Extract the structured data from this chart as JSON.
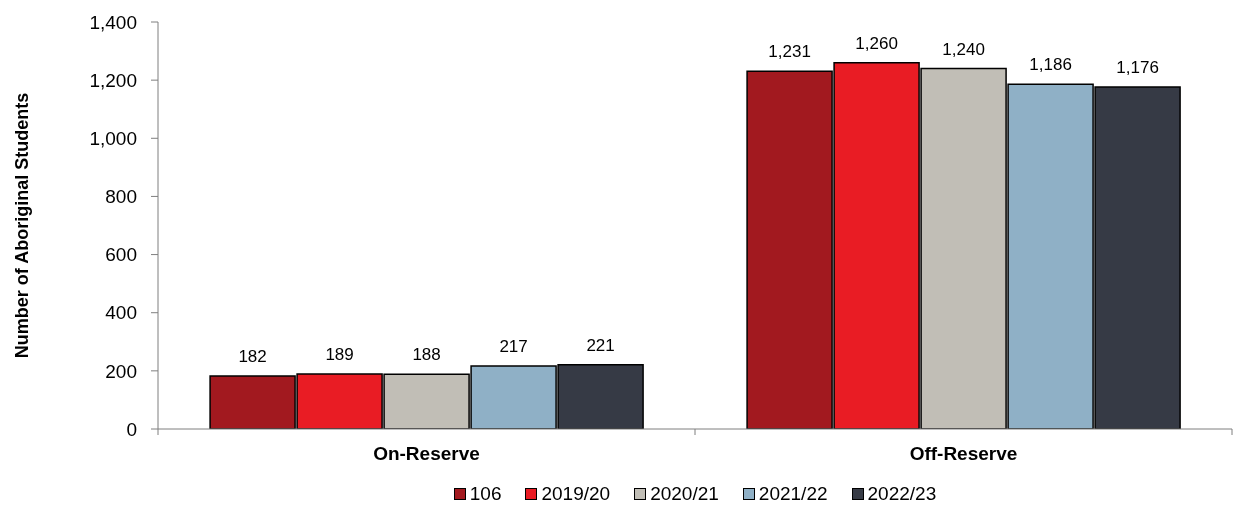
{
  "chart_data": {
    "type": "bar",
    "ylabel": "Number of Aboriginal Students",
    "categories": [
      "On-Reserve",
      "Off-Reserve"
    ],
    "series": [
      {
        "name": "106",
        "color": "#a2191f",
        "values": [
          182,
          1231
        ],
        "value_labels": [
          "182",
          "1,231"
        ]
      },
      {
        "name": "2019/20",
        "color": "#e91c24",
        "values": [
          189,
          1260
        ],
        "value_labels": [
          "189",
          "1,260"
        ]
      },
      {
        "name": "2020/21",
        "color": "#c1beb6",
        "values": [
          188,
          1240
        ],
        "value_labels": [
          "188",
          "1,240"
        ]
      },
      {
        "name": "2021/22",
        "color": "#8fb0c6",
        "values": [
          217,
          1186
        ],
        "value_labels": [
          "217",
          "1,186"
        ]
      },
      {
        "name": "2022/23",
        "color": "#363a45",
        "values": [
          221,
          1176
        ],
        "value_labels": [
          "221",
          "1,176"
        ]
      }
    ],
    "ylim": [
      0,
      1400
    ],
    "yticks": [
      0,
      200,
      400,
      600,
      800,
      {
        "value": 1000,
        "label": "1,000"
      },
      {
        "value": 1200,
        "label": "1,200"
      },
      {
        "value": 1400,
        "label": "1,400"
      }
    ],
    "grid": false,
    "legend": "bottom"
  }
}
